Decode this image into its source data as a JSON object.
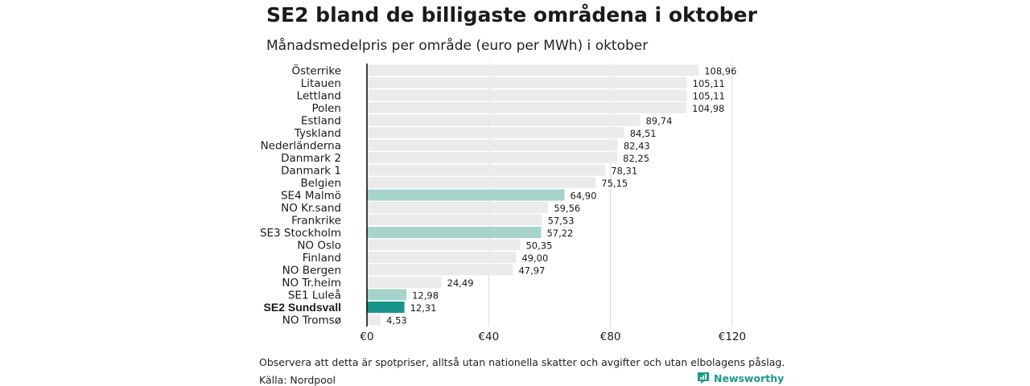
{
  "title": "SE2 bland de billigaste områdena i oktober",
  "subtitle": "Månadsmedelpris per område (euro per MWh) i oktober",
  "note": "Observera att detta är spotpriser, alltså utan nationella skatter och avgifter och utan elbolagens påslag.",
  "source": "Källa: Nordpool",
  "brand": "Newsworthy",
  "colors": {
    "default": "#ebebeb",
    "highlight": "#a6d3cb",
    "focus": "#179488",
    "axis": "#000000",
    "grid": "#d9d9d9",
    "brand": "#1a9a8a"
  },
  "chart_data": {
    "type": "bar",
    "orientation": "horizontal",
    "title": "SE2 bland de billigaste områdena i oktober",
    "subtitle": "Månadsmedelpris per område (euro per MWh) i oktober",
    "xlabel": "",
    "ylabel": "",
    "xlim": [
      0,
      120
    ],
    "xticks": [
      0,
      40,
      80,
      120
    ],
    "xtick_labels": [
      "€0",
      "€40",
      "€80",
      "€120"
    ],
    "grid": true,
    "categories": [
      "Österrike",
      "Litauen",
      "Lettland",
      "Polen",
      "Estland",
      "Tyskland",
      "Nederländerna",
      "Danmark  2",
      "Danmark  1",
      "Belgien",
      "SE4  Malmö",
      "NO Kr.sand",
      "Frankrike",
      "SE3  Stockholm",
      "NO Oslo",
      "Finland",
      "NO Bergen",
      "NO Tr.heim",
      "SE1  Luleå",
      "SE2 Sundsvall",
      "NO Tromsø"
    ],
    "values": [
      108.96,
      105.11,
      105.11,
      104.98,
      89.74,
      84.51,
      82.43,
      82.25,
      78.31,
      75.15,
      64.9,
      59.56,
      57.53,
      57.22,
      50.35,
      49.0,
      47.97,
      24.49,
      12.98,
      12.31,
      4.53
    ],
    "value_labels": [
      "108,96",
      "105,11",
      "105,11",
      "104,98",
      "89,74",
      "84,51",
      "82,43",
      "82,25",
      "78,31",
      "75,15",
      "64,90",
      "59,56",
      "57,53",
      "57,22",
      "50,35",
      "49,00",
      "47,97",
      "24,49",
      "12,98",
      "12,31",
      "4,53"
    ],
    "highlight": [
      "default",
      "default",
      "default",
      "default",
      "default",
      "default",
      "default",
      "default",
      "default",
      "default",
      "highlight",
      "default",
      "default",
      "highlight",
      "default",
      "default",
      "default",
      "default",
      "highlight",
      "focus",
      "default"
    ]
  }
}
